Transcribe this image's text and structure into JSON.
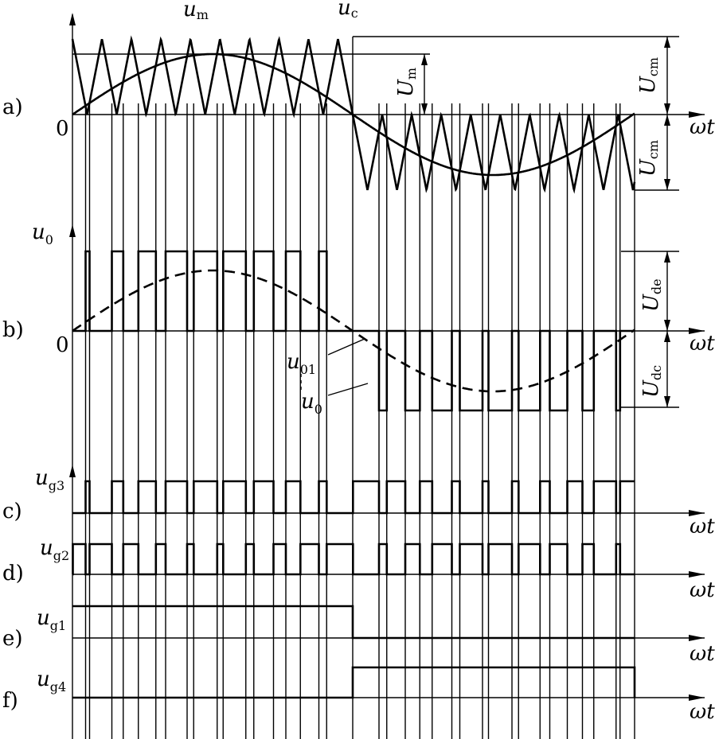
{
  "panels": [
    {
      "id": "a",
      "label": "a)"
    },
    {
      "id": "b",
      "label": "b)"
    },
    {
      "id": "c",
      "label": "c)"
    },
    {
      "id": "d",
      "label": "d)"
    },
    {
      "id": "e",
      "label": "e)"
    },
    {
      "id": "f",
      "label": "f)"
    }
  ],
  "axis_label": {
    "var": "ω",
    "sub": "t"
  },
  "origin_label": "0",
  "signals": {
    "u_m": {
      "base": "u",
      "sub": "m"
    },
    "u_c": {
      "base": "u",
      "sub": "c"
    },
    "u_0": {
      "base": "u",
      "sub": "0"
    },
    "u_01": {
      "base": "u",
      "sub": "01"
    },
    "u_0_b": {
      "base": "u",
      "sub": "0"
    },
    "u_g3": {
      "base": "u",
      "sub": "g3"
    },
    "u_g2": {
      "base": "u",
      "sub": "g2"
    },
    "u_g1": {
      "base": "u",
      "sub": "g1"
    },
    "u_g4": {
      "base": "u",
      "sub": "g4"
    }
  },
  "dimensions": {
    "U_m": {
      "base": "U",
      "sub": "m"
    },
    "U_cm_top": {
      "base": "U",
      "sub": "cm"
    },
    "U_cm_bottom": {
      "base": "U",
      "sub": "cm"
    },
    "U_de": {
      "base": "U",
      "sub": "de"
    },
    "U_dc": {
      "base": "U",
      "sub": "dc"
    }
  },
  "waveform": {
    "carrier_periods_per_half": 9.5,
    "modulation_ratio": 0.8,
    "modulation": "unipolar sinusoidal PWM",
    "half_periods": 2
  }
}
